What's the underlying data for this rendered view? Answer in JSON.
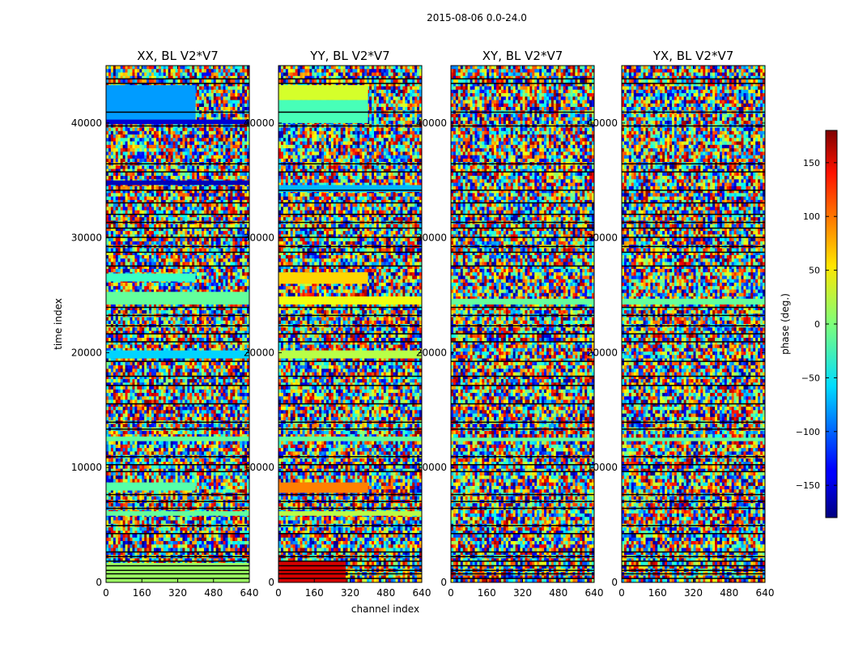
{
  "chart_data": {
    "type": "heatmap",
    "suptitle": "2015-08-06 0.0-24.0",
    "xlabel": "channel index",
    "ylabel": "time index",
    "xlim": [
      0,
      640
    ],
    "ylim": [
      0,
      45000
    ],
    "x_ticks": [
      0,
      160,
      320,
      480,
      640
    ],
    "x_tick_labels": [
      "0",
      "160",
      "320",
      "480",
      "640"
    ],
    "y_ticks": [
      0,
      10000,
      20000,
      30000,
      40000
    ],
    "y_tick_labels": [
      "0",
      "10000",
      "20000",
      "30000",
      "40000"
    ],
    "colormap": "jet",
    "colorbar": {
      "label": "phase (deg.)",
      "vmin": -180,
      "vmax": 180,
      "ticks": [
        -150,
        -100,
        -50,
        0,
        50,
        100,
        150
      ],
      "tick_labels": [
        "−150",
        "−100",
        "−50",
        "0",
        "50",
        "100",
        "150"
      ]
    },
    "panels": [
      {
        "title": "XX, BL V2*V7",
        "noise_level": 1.0,
        "bands": [
          {
            "t": [
              40200,
              43300
            ],
            "ch": [
              0,
              400
            ],
            "phase": -80
          },
          {
            "t": [
              39900,
              40300
            ],
            "ch": [
              0,
              640
            ],
            "phase": -150
          },
          {
            "t": [
              34600,
              35000
            ],
            "ch": [
              0,
              640
            ],
            "phase": -160
          },
          {
            "t": [
              26200,
              26900
            ],
            "ch": [
              0,
              400
            ],
            "phase": -25
          },
          {
            "t": [
              24200,
              25300
            ],
            "ch": [
              0,
              640
            ],
            "phase": -10
          },
          {
            "t": [
              19500,
              20200
            ],
            "ch": [
              0,
              640
            ],
            "phase": -60
          },
          {
            "t": [
              12300,
              12700
            ],
            "ch": [
              0,
              640
            ],
            "phase": -10
          },
          {
            "t": [
              8000,
              8700
            ],
            "ch": [
              0,
              400
            ],
            "phase": -15
          },
          {
            "t": [
              5800,
              6200
            ],
            "ch": [
              0,
              640
            ],
            "phase": -10
          },
          {
            "t": [
              0,
              1700
            ],
            "ch": [
              0,
              640
            ],
            "phase": 10
          }
        ]
      },
      {
        "title": "YY, BL V2*V7",
        "noise_level": 1.0,
        "bands": [
          {
            "t": [
              42000,
              43300
            ],
            "ch": [
              0,
              400
            ],
            "phase": 30
          },
          {
            "t": [
              40000,
              42000
            ],
            "ch": [
              0,
              400
            ],
            "phase": -20
          },
          {
            "t": [
              34000,
              34600
            ],
            "ch": [
              0,
              640
            ],
            "phase": -70
          },
          {
            "t": [
              26000,
              27000
            ],
            "ch": [
              0,
              400
            ],
            "phase": 60
          },
          {
            "t": [
              24200,
              24900
            ],
            "ch": [
              0,
              640
            ],
            "phase": 40
          },
          {
            "t": [
              19500,
              20200
            ],
            "ch": [
              0,
              640
            ],
            "phase": 20
          },
          {
            "t": [
              12300,
              12700
            ],
            "ch": [
              0,
              640
            ],
            "phase": -10
          },
          {
            "t": [
              7800,
              8700
            ],
            "ch": [
              0,
              400
            ],
            "phase": 90
          },
          {
            "t": [
              5800,
              6200
            ],
            "ch": [
              0,
              640
            ],
            "phase": 20
          },
          {
            "t": [
              0,
              1800
            ],
            "ch": [
              0,
              300
            ],
            "phase": 150
          }
        ]
      },
      {
        "title": "XY, BL V2*V7",
        "noise_level": 1.0,
        "bands": [
          {
            "t": [
              24200,
              24700
            ],
            "ch": [
              0,
              640
            ],
            "phase": -10
          },
          {
            "t": [
              12300,
              12600
            ],
            "ch": [
              0,
              640
            ],
            "phase": -10
          }
        ]
      },
      {
        "title": "YX, BL V2*V7",
        "noise_level": 1.0,
        "bands": [
          {
            "t": [
              24200,
              24700
            ],
            "ch": [
              0,
              640
            ],
            "phase": -10
          },
          {
            "t": [
              12300,
              12600
            ],
            "ch": [
              0,
              640
            ],
            "phase": -10
          }
        ]
      }
    ],
    "flag_rows": [
      43900,
      43500,
      41000,
      39800,
      36500,
      35800,
      34200,
      33100,
      32100,
      31400,
      30900,
      30100,
      29300,
      28800,
      27600,
      24000,
      23300,
      22400,
      21700,
      21000,
      19300,
      18000,
      17200,
      15600,
      14000,
      13400,
      11000,
      10300,
      9700,
      7700,
      7100,
      6500,
      5000,
      4300,
      2700,
      2300,
      1900,
      1500,
      1100,
      800,
      400
    ]
  }
}
